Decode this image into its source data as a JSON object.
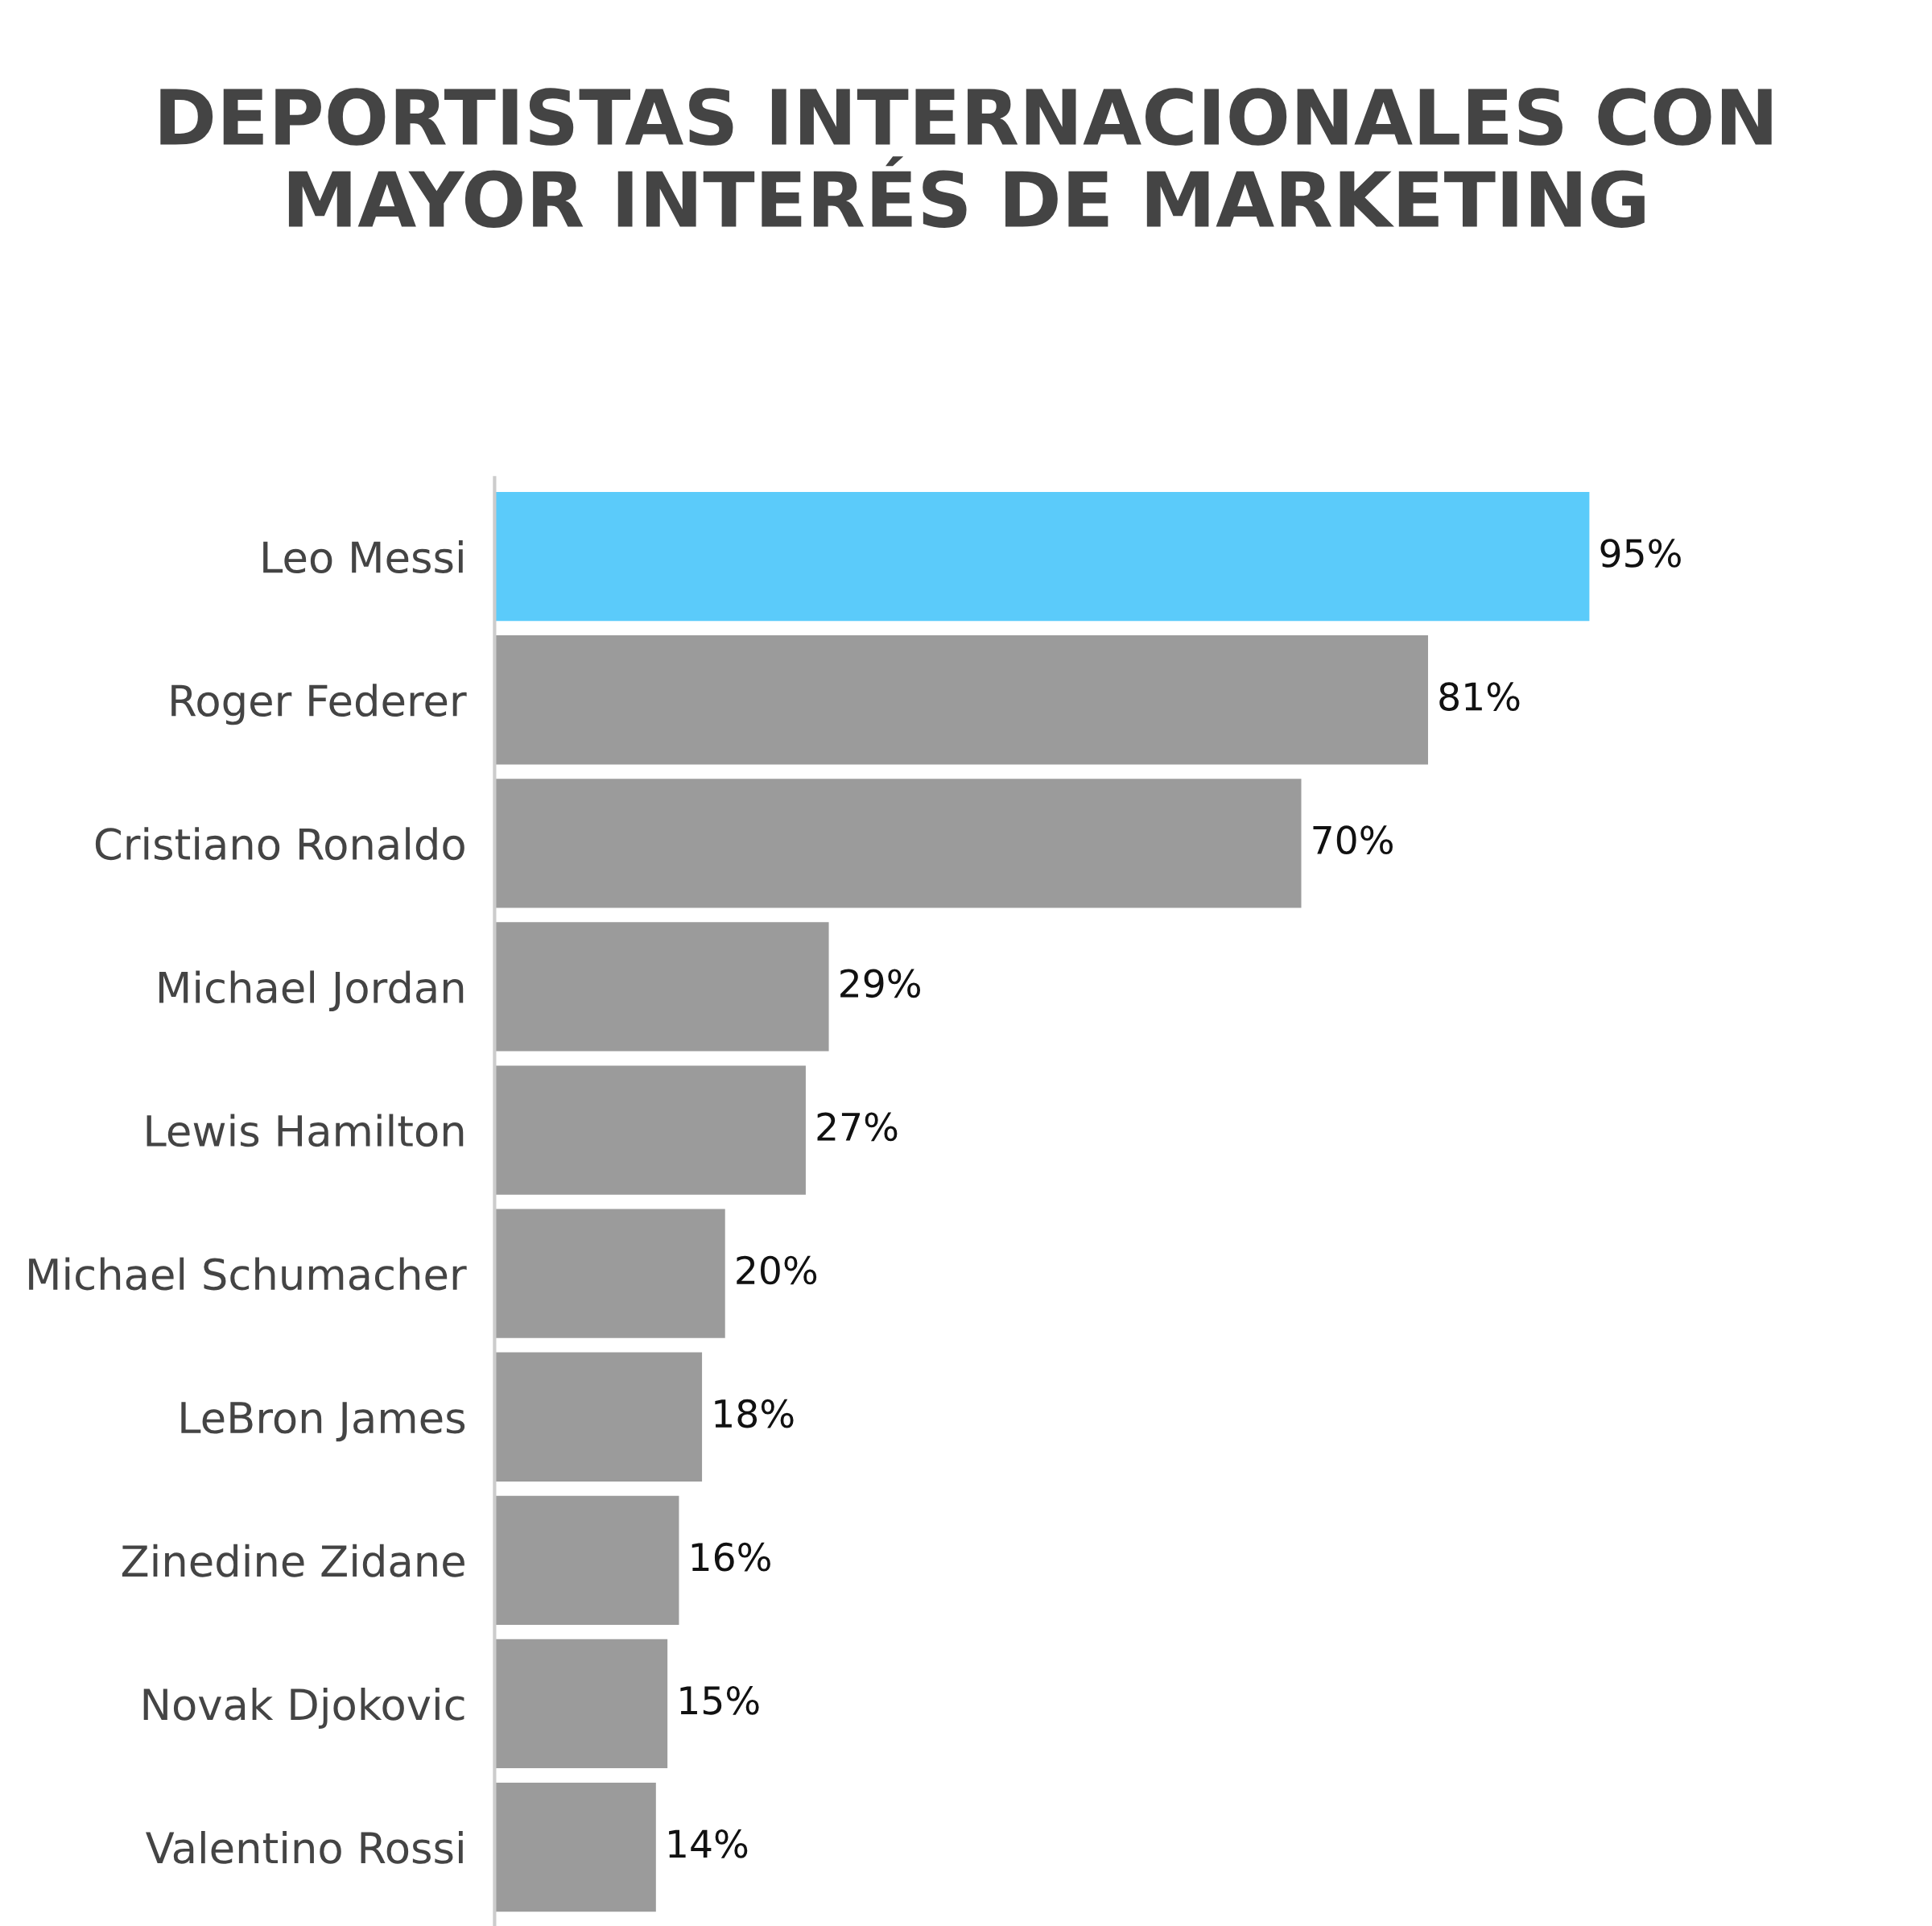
{
  "chart_data": {
    "type": "bar",
    "orientation": "horizontal",
    "title": "DEPORTISTAS INTERNACIONALES CON\nMAYOR INTERÉS DE MARKETING",
    "categories": [
      "Leo Messi",
      "Roger Federer",
      "Cristiano Ronaldo",
      "Michael Jordan",
      "Lewis Hamilton",
      "Michael Schumacher",
      "LeBron James",
      "Zinedine Zidane",
      "Novak Djokovic",
      "Valentino Rossi"
    ],
    "values": [
      95,
      81,
      70,
      29,
      27,
      20,
      18,
      16,
      15,
      14
    ],
    "value_labels": [
      "95%",
      "81%",
      "70%",
      "29%",
      "27%",
      "20%",
      "18%",
      "16%",
      "15%",
      "14%"
    ],
    "colors": [
      "#5bcbfa",
      "#9b9b9b",
      "#9b9b9b",
      "#9b9b9b",
      "#9b9b9b",
      "#9b9b9b",
      "#9b9b9b",
      "#9b9b9b",
      "#9b9b9b",
      "#9b9b9b"
    ],
    "grid": false,
    "legend": false
  }
}
